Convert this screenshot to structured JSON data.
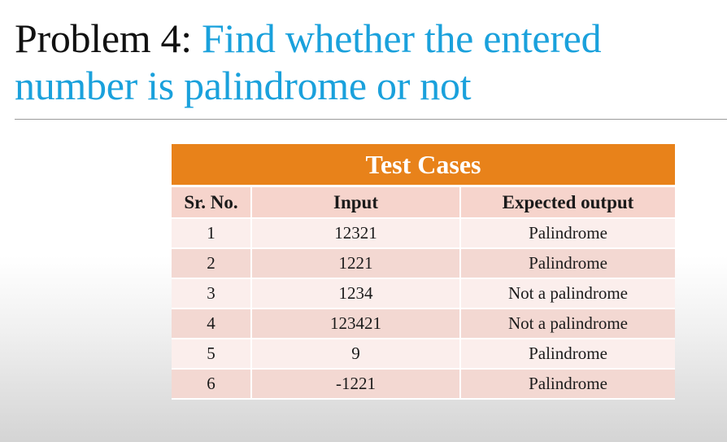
{
  "slide": {
    "title_prefix": "Problem 4: ",
    "title_main": "Find whether the entered number is palindrome or not"
  },
  "table": {
    "caption": "Test Cases",
    "headers": [
      "Sr. No.",
      "Input",
      "Expected output"
    ],
    "rows": [
      [
        "1",
        "12321",
        "Palindrome"
      ],
      [
        "2",
        "1221",
        "Palindrome"
      ],
      [
        "3",
        "1234",
        "Not a palindrome"
      ],
      [
        "4",
        "123421",
        "Not a palindrome"
      ],
      [
        "5",
        "9",
        "Palindrome"
      ],
      [
        "6",
        "-1221",
        "Palindrome"
      ]
    ]
  },
  "colors": {
    "title_accent": "#1aa1dc",
    "caption_background": "#e8821a",
    "row_light": "#fbeeec",
    "row_dark": "#f3d8d2"
  }
}
